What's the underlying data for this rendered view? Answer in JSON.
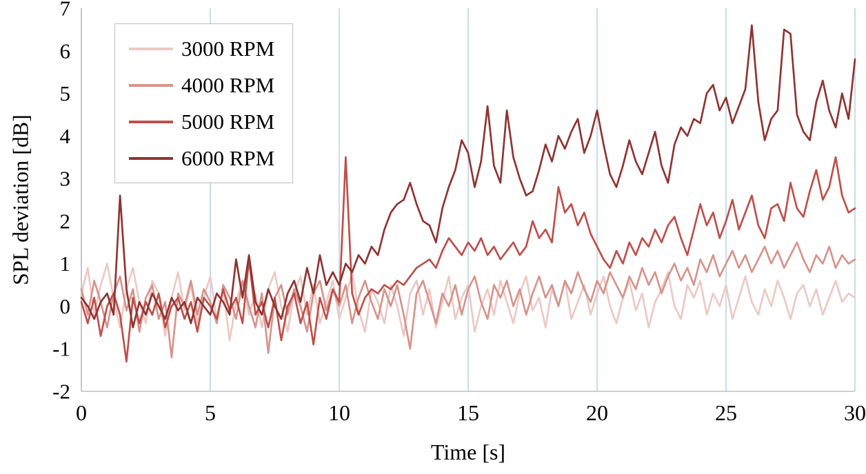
{
  "chart_data": {
    "type": "line",
    "title": "",
    "xlabel": "Time [s]",
    "ylabel": "SPL deviation [dB]",
    "xlim": [
      0,
      30
    ],
    "ylim": [
      -2,
      7
    ],
    "xticks": [
      0,
      5,
      10,
      15,
      20,
      25,
      30
    ],
    "yticks": [
      7,
      6,
      5,
      4,
      3,
      2,
      1,
      0,
      -1,
      -2
    ],
    "grid": {
      "vertical": true,
      "horizontal": false,
      "gridline_color": "#c9dcf0",
      "axis_color": "#bfbfbf"
    },
    "legend_position": "top-left",
    "x_start": 0,
    "x_step": 0.25,
    "series": [
      {
        "name": "3000 RPM",
        "color": "#ecc9c4",
        "values": [
          0.3,
          0.9,
          -0.2,
          0.5,
          1.0,
          0.2,
          -0.5,
          0.4,
          0.9,
          0.1,
          -0.4,
          0.6,
          0.3,
          -0.7,
          0.2,
          0.8,
          -0.1,
          0.5,
          -0.4,
          0.2,
          0.7,
          -0.3,
          0.4,
          -0.8,
          0.1,
          0.6,
          -0.2,
          0.3,
          -0.5,
          0.4,
          0.8,
          0.0,
          -0.6,
          0.3,
          0.7,
          -0.2,
          0.5,
          -0.4,
          0.1,
          0.6,
          -0.3,
          0.2,
          0.8,
          -0.1,
          -0.6,
          0.4,
          0.1,
          -0.4,
          0.5,
          0.0,
          -0.7,
          0.3,
          0.6,
          -0.2,
          0.4,
          -0.5,
          0.1,
          0.7,
          -0.3,
          0.2,
          0.5,
          -0.6,
          0.0,
          0.4,
          -0.2,
          0.6,
          0.1,
          -0.4,
          0.3,
          0.7,
          -0.1,
          0.2,
          -0.5,
          0.4,
          0.0,
          0.6,
          -0.3,
          0.1,
          0.5,
          -0.2,
          0.3,
          0.7,
          0.0,
          -0.4,
          0.2,
          0.6,
          -0.1,
          0.3,
          -0.5,
          0.1,
          0.4,
          0.8,
          0.0,
          -0.3,
          0.5,
          0.2,
          0.6,
          -0.2,
          0.3,
          0.0,
          0.5,
          -0.3,
          0.2,
          0.7,
          0.1,
          -0.2,
          0.4,
          0.0,
          0.6,
          0.2,
          -0.3,
          0.3,
          0.5,
          0.0,
          0.4,
          -0.2,
          0.2,
          0.6,
          0.1,
          0.3,
          0.2
        ]
      },
      {
        "name": "4000 RPM",
        "color": "#d6948c",
        "values": [
          0.4,
          -0.2,
          0.6,
          0.1,
          -0.5,
          0.3,
          0.7,
          -0.1,
          0.4,
          -0.6,
          0.2,
          0.5,
          -0.3,
          0.1,
          -1.2,
          0.3,
          0.0,
          0.6,
          -0.2,
          0.4,
          0.1,
          -0.4,
          0.5,
          0.2,
          -0.3,
          0.6,
          0.0,
          -0.5,
          0.3,
          -1.1,
          0.2,
          0.5,
          -0.2,
          0.4,
          0.0,
          -0.6,
          0.3,
          0.6,
          -0.1,
          0.4,
          0.0,
          0.5,
          -0.4,
          0.2,
          0.6,
          0.1,
          -0.3,
          0.4,
          0.0,
          0.5,
          -0.2,
          -1.0,
          0.3,
          0.6,
          0.1,
          -0.4,
          0.3,
          0.0,
          0.5,
          -0.2,
          0.4,
          0.7,
          0.1,
          -0.3,
          0.5,
          0.2,
          0.6,
          0.0,
          0.4,
          -0.2,
          0.3,
          0.7,
          0.2,
          0.5,
          0.0,
          0.6,
          0.3,
          0.8,
          0.4,
          0.1,
          0.6,
          0.3,
          0.8,
          0.5,
          0.2,
          0.7,
          0.4,
          0.9,
          0.5,
          0.8,
          0.3,
          0.7,
          1.0,
          0.6,
          0.9,
          0.5,
          1.1,
          0.8,
          1.2,
          0.7,
          1.0,
          1.3,
          0.9,
          1.2,
          0.8,
          1.1,
          1.4,
          1.0,
          1.3,
          0.9,
          1.2,
          1.5,
          1.1,
          0.8,
          1.2,
          1.0,
          1.4,
          0.9,
          1.2,
          1.0,
          1.1
        ]
      },
      {
        "name": "5000 RPM",
        "color": "#bf4f4a",
        "values": [
          0.1,
          -0.4,
          0.2,
          -0.7,
          0.0,
          0.3,
          -0.2,
          -1.3,
          0.2,
          -0.4,
          0.1,
          -0.2,
          0.3,
          -0.5,
          0.0,
          0.2,
          -0.3,
          0.1,
          -0.6,
          0.2,
          0.0,
          -0.3,
          0.4,
          -0.1,
          0.2,
          -0.4,
          1.1,
          -0.2,
          0.1,
          -0.5,
          0.2,
          -0.8,
          0.0,
          0.3,
          -0.4,
          0.1,
          -0.9,
          0.2,
          -0.3,
          0.4,
          0.1,
          3.5,
          0.3,
          -0.2,
          0.2,
          0.4,
          0.3,
          0.5,
          0.4,
          0.6,
          0.5,
          0.7,
          0.9,
          1.0,
          1.1,
          0.9,
          1.3,
          1.6,
          1.4,
          1.2,
          1.5,
          1.3,
          1.6,
          1.2,
          1.4,
          1.1,
          1.3,
          1.5,
          1.2,
          1.4,
          2.0,
          1.6,
          1.8,
          1.5,
          2.8,
          2.2,
          2.4,
          1.9,
          2.2,
          1.7,
          1.4,
          1.1,
          0.9,
          1.3,
          1.0,
          1.5,
          1.2,
          1.6,
          1.4,
          1.8,
          1.5,
          1.9,
          2.1,
          1.6,
          1.2,
          1.8,
          2.4,
          1.9,
          2.2,
          1.6,
          2.0,
          2.5,
          1.8,
          2.2,
          2.6,
          1.9,
          1.6,
          2.3,
          2.4,
          2.0,
          2.9,
          2.3,
          2.1,
          2.7,
          3.2,
          2.5,
          2.8,
          3.5,
          2.6,
          2.2,
          2.3
        ]
      },
      {
        "name": "6000 RPM",
        "color": "#8f3431",
        "values": [
          0.2,
          0.0,
          -0.3,
          0.1,
          0.3,
          -0.2,
          2.6,
          0.4,
          -0.5,
          0.1,
          -0.2,
          0.3,
          0.0,
          -0.3,
          0.2,
          -0.1,
          0.1,
          -0.4,
          0.2,
          0.0,
          -0.2,
          0.3,
          0.1,
          -0.2,
          1.1,
          0.2,
          1.2,
          0.1,
          -0.2,
          0.4,
          0.0,
          -0.3,
          0.3,
          0.6,
          0.1,
          0.9,
          0.3,
          1.2,
          0.5,
          0.8,
          0.5,
          1.0,
          0.8,
          1.2,
          1.0,
          1.4,
          1.2,
          1.8,
          2.2,
          2.4,
          2.5,
          2.9,
          2.4,
          2.0,
          1.9,
          1.5,
          2.3,
          2.8,
          3.2,
          3.9,
          3.6,
          2.8,
          3.4,
          4.7,
          3.3,
          2.9,
          4.6,
          3.5,
          3.0,
          2.6,
          2.7,
          3.2,
          3.8,
          3.4,
          4.0,
          3.7,
          4.1,
          4.4,
          3.6,
          4.0,
          4.6,
          3.8,
          3.1,
          2.8,
          3.3,
          3.9,
          3.4,
          3.1,
          3.6,
          4.1,
          3.3,
          2.9,
          3.8,
          4.2,
          4.0,
          4.4,
          4.3,
          5.0,
          5.2,
          4.6,
          4.9,
          4.3,
          4.7,
          5.1,
          6.6,
          4.8,
          3.9,
          4.4,
          4.6,
          6.5,
          6.4,
          4.5,
          4.1,
          3.9,
          4.8,
          5.3,
          4.6,
          4.2,
          5.0,
          4.4,
          5.8
        ]
      }
    ]
  }
}
